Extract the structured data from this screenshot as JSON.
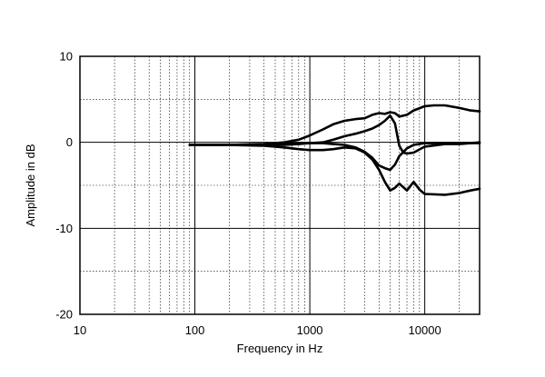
{
  "chart_data": {
    "type": "line",
    "title": "",
    "xlabel": "Frequency in Hz",
    "ylabel": "Amplitude in dB",
    "xscale": "log",
    "xlim": [
      20,
      30000
    ],
    "ylim": [
      -20,
      10
    ],
    "x_tick_labels": [
      "10",
      "100",
      "1000",
      "10000"
    ],
    "x_tick_values": [
      10,
      100,
      1000,
      10000
    ],
    "y_tick_labels": [
      "10",
      "0",
      "-10",
      "-20"
    ],
    "y_tick_values": [
      10,
      0,
      -10,
      -20
    ],
    "grid": true,
    "line_color": "#000000",
    "series": [
      {
        "x": [
          90,
          200,
          400,
          600,
          800,
          1000,
          1300,
          1600,
          2000,
          2500,
          3000,
          3500,
          4000,
          4500,
          5000,
          5500,
          6000,
          7000,
          8000,
          10000,
          12000,
          15000,
          20000,
          25000,
          30000
        ],
        "y": [
          -0.3,
          -0.3,
          -0.2,
          0.0,
          0.3,
          0.8,
          1.5,
          2.1,
          2.5,
          2.7,
          2.8,
          3.2,
          3.4,
          3.3,
          3.5,
          3.4,
          3.0,
          3.2,
          3.7,
          4.2,
          4.3,
          4.3,
          4.0,
          3.7,
          3.6
        ]
      },
      {
        "x": [
          90,
          200,
          400,
          600,
          800,
          1000,
          1300,
          1600,
          2000,
          2500,
          3000,
          3500,
          4000,
          4500,
          5000,
          5500,
          6000,
          6500,
          7000,
          8000,
          10000,
          15000,
          20000,
          25000,
          30000
        ],
        "y": [
          -0.3,
          -0.3,
          -0.3,
          -0.3,
          -0.2,
          -0.1,
          0.0,
          0.3,
          0.7,
          1.0,
          1.3,
          1.6,
          2.0,
          2.5,
          3.1,
          2.2,
          -0.4,
          -1.2,
          -1.3,
          -1.2,
          -0.5,
          -0.2,
          -0.2,
          -0.1,
          -0.1
        ]
      },
      {
        "x": [
          90,
          200,
          400,
          600,
          800,
          1000,
          1300,
          1600,
          2000,
          2500,
          3000,
          3500,
          4000,
          4500,
          5000,
          5500,
          6000,
          7000,
          8000,
          9000,
          10000,
          15000,
          20000,
          25000,
          30000
        ],
        "y": [
          -0.3,
          -0.3,
          -0.4,
          -0.6,
          -0.8,
          -0.9,
          -0.9,
          -0.8,
          -0.6,
          -0.7,
          -1.2,
          -2.0,
          -3.2,
          -4.6,
          -5.6,
          -5.3,
          -4.8,
          -5.6,
          -4.6,
          -5.5,
          -6.0,
          -6.1,
          -5.9,
          -5.6,
          -5.4
        ]
      },
      {
        "x": [
          90,
          200,
          400,
          600,
          800,
          1000,
          1300,
          1600,
          2000,
          2500,
          3000,
          3500,
          4000,
          4500,
          5000,
          5500,
          6000,
          7000,
          8000,
          10000,
          15000,
          20000,
          25000,
          30000
        ],
        "y": [
          -0.3,
          -0.3,
          -0.3,
          -0.2,
          -0.1,
          -0.1,
          -0.1,
          -0.2,
          -0.3,
          -0.6,
          -1.1,
          -1.8,
          -2.7,
          -3.0,
          -3.2,
          -2.6,
          -1.6,
          -0.7,
          -0.3,
          -0.1,
          -0.1,
          -0.1,
          -0.1,
          0.0
        ]
      }
    ]
  }
}
